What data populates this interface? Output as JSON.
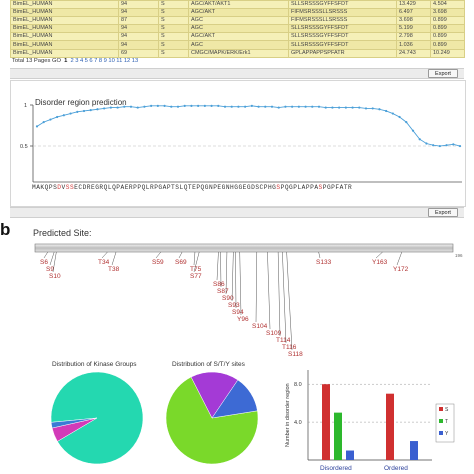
{
  "table": {
    "rows": [
      [
        "BimEL_HUMAN",
        "94",
        "S",
        "AGC/AKT/AKT1",
        "SLLSRSSSGYFFSFDT",
        "13.429",
        "4.504"
      ],
      [
        "BimEL_HUMAN",
        "94",
        "S",
        "AGC/AKT",
        "FIFMSRSSSLLSRSSS",
        "6.497",
        "3.698"
      ],
      [
        "BimEL_HUMAN",
        "87",
        "S",
        "AGC",
        "FIFMSRSSSLLSRSSS",
        "3.698",
        "0.899"
      ],
      [
        "BimEL_HUMAN",
        "94",
        "S",
        "AGC",
        "SLLSRSSSGYFFSFDT",
        "5.199",
        "0.899"
      ],
      [
        "BimEL_HUMAN",
        "94",
        "S",
        "AGC/AKT",
        "SLLSRSSSGYFFSFDT",
        "2.798",
        "0.899"
      ],
      [
        "BimEL_HUMAN",
        "94",
        "S",
        "AGC",
        "SLLSRSSSGYFFSFDT",
        "1.036",
        "0.899"
      ],
      [
        "BimEL_HUMAN",
        "69",
        "S",
        "CMGC/MAPK/ERK/Erk1",
        "GPLAPPAPPSPFATR",
        "24.743",
        "10.249"
      ]
    ]
  },
  "pager": {
    "total_text": "Total 13 Pages GO",
    "current": "1",
    "pages": [
      "2",
      "3",
      "4",
      "5",
      "6",
      "7",
      "8",
      "9",
      "10",
      "11",
      "12",
      "13"
    ]
  },
  "export_label": "Export",
  "disorder": {
    "title": "Disorder region prediction",
    "y_ticks": [
      "1",
      "0.5"
    ],
    "line_color": "#4a9fd8",
    "values": [
      0.75,
      0.8,
      0.83,
      0.86,
      0.88,
      0.9,
      0.92,
      0.93,
      0.94,
      0.95,
      0.96,
      0.97,
      0.97,
      0.98,
      0.98,
      0.97,
      0.98,
      0.99,
      0.99,
      0.99,
      0.98,
      0.98,
      0.99,
      0.99,
      0.99,
      0.99,
      0.99,
      0.99,
      0.98,
      0.98,
      0.98,
      0.98,
      0.99,
      0.98,
      0.98,
      0.98,
      0.97,
      0.98,
      0.98,
      0.98,
      0.98,
      0.98,
      0.98,
      0.97,
      0.97,
      0.97,
      0.97,
      0.97,
      0.97,
      0.96,
      0.96,
      0.95,
      0.93,
      0.9,
      0.86,
      0.8,
      0.7,
      0.6,
      0.55,
      0.53,
      0.52,
      0.53,
      0.54,
      0.52
    ],
    "sequence": [
      {
        "t": "MAKQPS",
        "red": false
      },
      {
        "t": "D",
        "red": true
      },
      {
        "t": "V",
        "red": false
      },
      {
        "t": "S",
        "red": true
      },
      {
        "t": "S",
        "red": true
      },
      {
        "t": "ECDREGRQLQPAERPPQLRPGAPTSLQTEPQGNPEGNHGGEGDSCPHG",
        "red": false
      },
      {
        "t": "S",
        "red": true
      },
      {
        "t": "PQGPLAPPA",
        "red": false
      },
      {
        "t": "S",
        "red": true
      },
      {
        "t": "PGPFATR",
        "red": false
      }
    ]
  },
  "panel_b_letter": "b",
  "predicted": {
    "title": "Predicted Site:",
    "sites": [
      {
        "label": "S6",
        "pos": 6
      },
      {
        "label": "S9",
        "pos": 9
      },
      {
        "label": "S10",
        "pos": 10
      },
      {
        "label": "T34",
        "pos": 34
      },
      {
        "label": "T38",
        "pos": 38
      },
      {
        "label": "S59",
        "pos": 59
      },
      {
        "label": "S69",
        "pos": 69
      },
      {
        "label": "T75",
        "pos": 75
      },
      {
        "label": "S77",
        "pos": 77
      },
      {
        "label": "S86",
        "pos": 86
      },
      {
        "label": "S87",
        "pos": 87
      },
      {
        "label": "S90",
        "pos": 90
      },
      {
        "label": "S93",
        "pos": 93
      },
      {
        "label": "S94",
        "pos": 94
      },
      {
        "label": "Y96",
        "pos": 96
      },
      {
        "label": "S104",
        "pos": 104
      },
      {
        "label": "S109",
        "pos": 109
      },
      {
        "label": "T114",
        "pos": 114
      },
      {
        "label": "T116",
        "pos": 116
      },
      {
        "label": "S118",
        "pos": 118
      },
      {
        "label": "S133",
        "pos": 133
      },
      {
        "label": "Y163",
        "pos": 163
      },
      {
        "label": "Y172",
        "pos": 172
      }
    ],
    "end_label": "196",
    "site_color": "#b03030"
  },
  "pie_kinase": {
    "title": "Distribution of Kinase Groups",
    "slices": [
      {
        "label": "",
        "value": 93.0,
        "color": "#24d8b0"
      },
      {
        "label": "",
        "value": 5.0,
        "color": "#d23ab8"
      },
      {
        "label": "",
        "value": 2.0,
        "color": "#3a7bd5"
      }
    ]
  },
  "pie_sty": {
    "title": "Distribution of S/T/Y sites",
    "slices": [
      {
        "label": "",
        "value": 70.0,
        "color": "#7ad92a"
      },
      {
        "label": "",
        "value": 17.0,
        "color": "#a43ad6"
      },
      {
        "label": "",
        "value": 13.0,
        "color": "#3d6ad4"
      }
    ]
  },
  "chart_data": {
    "type": "bar",
    "categories": [
      "Disordered",
      "Ordered"
    ],
    "series": [
      {
        "name": "S",
        "values": [
          8,
          7
        ],
        "color": "#d03030"
      },
      {
        "name": "T",
        "values": [
          5,
          0
        ],
        "color": "#2db82d"
      },
      {
        "name": "Y",
        "values": [
          1,
          2
        ],
        "color": "#3a5fd0"
      }
    ],
    "yticks": [
      "8.0",
      "4.0"
    ],
    "ylabel": "Number in disorder region",
    "ylim": [
      0,
      9.5
    ],
    "grid": "dashed at 4.0 and 8.0",
    "legend": "right"
  }
}
